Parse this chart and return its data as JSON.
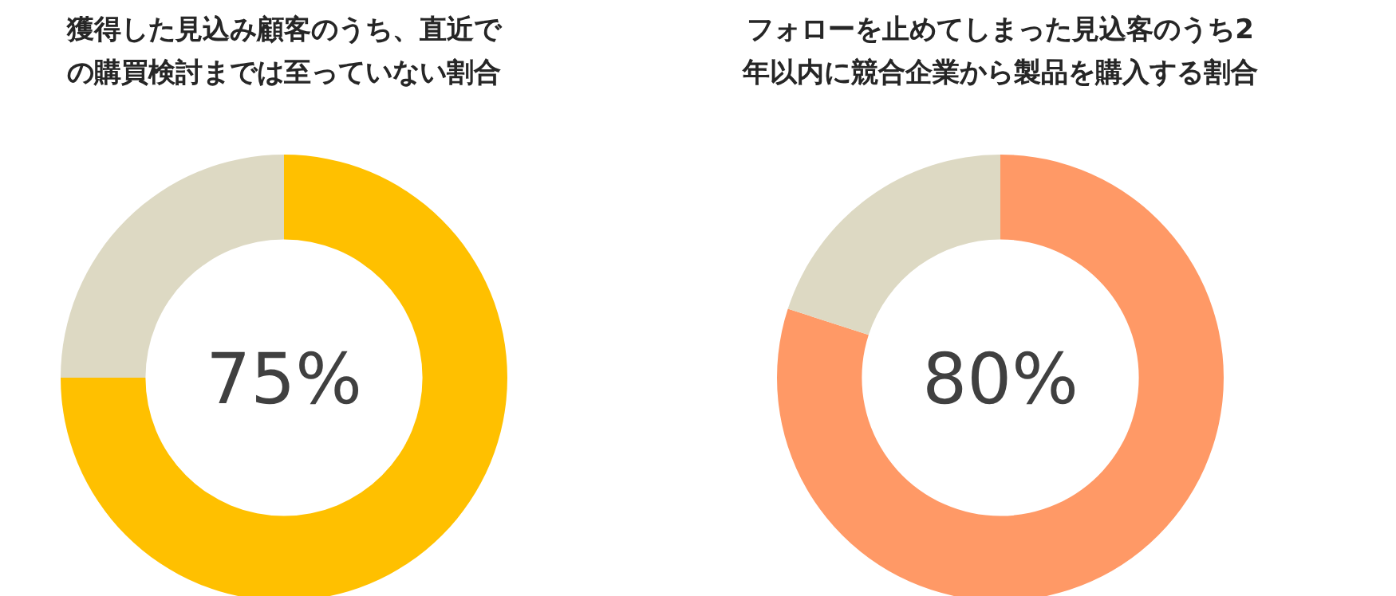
{
  "chart_data": [
    {
      "type": "donut",
      "title": "獲得した見込み顧客のうち、直近での購買検討までは至っていない割合",
      "categories": [
        null,
        null
      ],
      "values": [
        75,
        25
      ],
      "colors": [
        "#ffc000",
        "#ddd9c3"
      ],
      "value_labels": [
        "75%",
        null
      ]
    },
    {
      "type": "donut",
      "title": "フォローを止めてしまった見込客のうち2年以内に競合企業から製品を購入する割合",
      "categories": [
        null,
        null
      ],
      "values": [
        80,
        20
      ],
      "colors": [
        "#ff9966",
        "#ddd9c3"
      ],
      "value_labels": [
        "80%",
        null
      ]
    }
  ]
}
